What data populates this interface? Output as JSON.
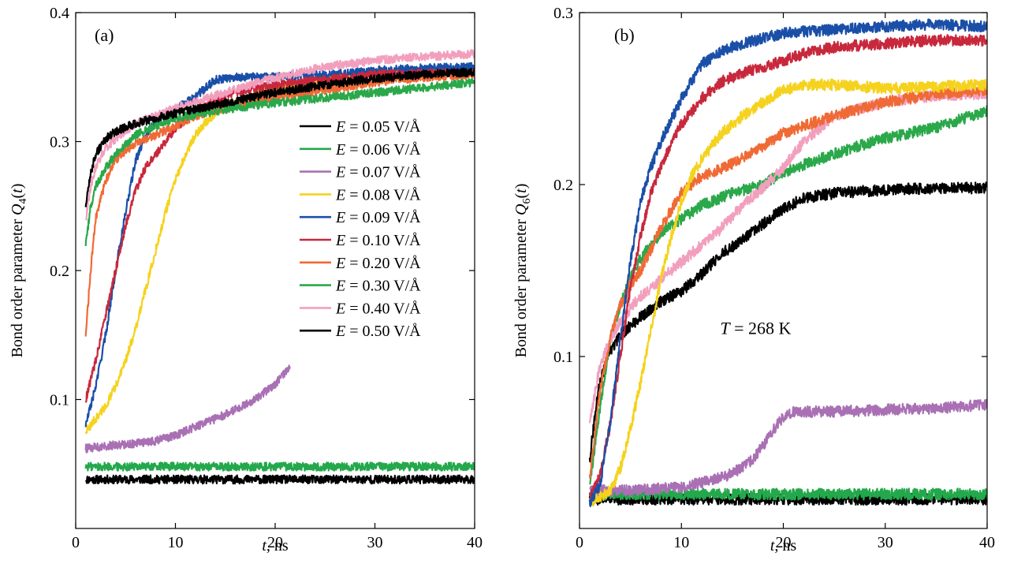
{
  "chart_data": [
    {
      "type": "line",
      "panel_label": "(a)",
      "xlabel_italic": "t",
      "xlabel_rest": ", ns",
      "ylabel_main": "Bond order parameter ",
      "ylabel_symbol": "Q",
      "ylabel_sub": "4",
      "ylabel_arg": "(t)",
      "xlim": [
        0,
        40
      ],
      "ylim": [
        0,
        0.4
      ],
      "xticks": [
        "0",
        "10",
        "20",
        "30",
        "40"
      ],
      "xtick_values": [
        0,
        10,
        20,
        30,
        40
      ],
      "yticks": [
        "0.1",
        "0.2",
        "0.3",
        "0.4"
      ],
      "ytick_values": [
        0.1,
        0.2,
        0.3,
        0.4
      ],
      "legend": {
        "placement": "right-middle"
      },
      "series": [
        {
          "name": "E = 0.05 V/Å",
          "label_var": "E",
          "label_rest": " = 0.05 V/Å",
          "color": "#000000",
          "x": [
            1,
            5,
            10,
            15,
            20,
            25,
            30,
            35,
            40
          ],
          "y": [
            0.038,
            0.038,
            0.038,
            0.038,
            0.038,
            0.038,
            0.038,
            0.038,
            0.038
          ]
        },
        {
          "name": "E = 0.06 V/Å",
          "label_var": "E",
          "label_rest": " = 0.06 V/Å",
          "color": "#23a84b",
          "x": [
            1,
            5,
            10,
            15,
            20,
            25,
            30,
            35,
            40
          ],
          "y": [
            0.048,
            0.048,
            0.048,
            0.048,
            0.048,
            0.048,
            0.048,
            0.048,
            0.048
          ]
        },
        {
          "name": "E = 0.07 V/Å",
          "label_var": "E",
          "label_rest": " = 0.07 V/Å",
          "color": "#a970b4",
          "x": [
            1,
            3,
            6,
            8,
            10,
            12,
            14,
            16,
            18,
            20,
            21.5
          ],
          "y": [
            0.062,
            0.064,
            0.066,
            0.068,
            0.072,
            0.079,
            0.085,
            0.092,
            0.1,
            0.112,
            0.125
          ]
        },
        {
          "name": "E = 0.08 V/Å",
          "label_var": "E",
          "label_rest": " = 0.08 V/Å",
          "color": "#f5d21e",
          "x": [
            1,
            2,
            3,
            4,
            5,
            6,
            7,
            8,
            9,
            10,
            11,
            12,
            13,
            14,
            16,
            20,
            25,
            30,
            35,
            40
          ],
          "y": [
            0.075,
            0.085,
            0.095,
            0.11,
            0.13,
            0.155,
            0.185,
            0.215,
            0.245,
            0.27,
            0.29,
            0.305,
            0.315,
            0.322,
            0.33,
            0.34,
            0.348,
            0.352,
            0.355,
            0.355
          ]
        },
        {
          "name": "E = 0.09 V/Å",
          "label_var": "E",
          "label_rest": " = 0.09 V/Å",
          "color": "#1a4fa8",
          "x": [
            1,
            2,
            3,
            4,
            5,
            6,
            7,
            8,
            10,
            12,
            14,
            16,
            20,
            25,
            30,
            35,
            40
          ],
          "y": [
            0.08,
            0.11,
            0.15,
            0.2,
            0.245,
            0.285,
            0.305,
            0.315,
            0.325,
            0.335,
            0.348,
            0.35,
            0.35,
            0.352,
            0.355,
            0.357,
            0.358
          ]
        },
        {
          "name": "E = 0.10 V/Å",
          "label_var": "E",
          "label_rest": " = 0.10 V/Å",
          "color": "#c8283c",
          "x": [
            1,
            2,
            3,
            4,
            5,
            6,
            7,
            8,
            9,
            10,
            12,
            14,
            16,
            20,
            25,
            30,
            35,
            40
          ],
          "y": [
            0.1,
            0.13,
            0.165,
            0.2,
            0.235,
            0.262,
            0.28,
            0.29,
            0.3,
            0.31,
            0.325,
            0.333,
            0.338,
            0.344,
            0.348,
            0.352,
            0.353,
            0.353
          ]
        },
        {
          "name": "E = 0.20 V/Å",
          "label_var": "E",
          "label_rest": " = 0.20 V/Å",
          "color": "#f06a35",
          "x": [
            1,
            1.5,
            2,
            3,
            4,
            5,
            6,
            8,
            10,
            12,
            15,
            20,
            25,
            30,
            35,
            40
          ],
          "y": [
            0.15,
            0.2,
            0.24,
            0.27,
            0.285,
            0.293,
            0.298,
            0.305,
            0.312,
            0.32,
            0.326,
            0.334,
            0.34,
            0.346,
            0.35,
            0.352
          ]
        },
        {
          "name": "E = 0.30 V/Å",
          "label_var": "E",
          "label_rest": " = 0.30 V/Å",
          "color": "#2aa84a",
          "x": [
            1,
            1.5,
            2,
            3,
            4,
            5,
            6,
            8,
            10,
            15,
            20,
            25,
            30,
            35,
            40
          ],
          "y": [
            0.22,
            0.25,
            0.265,
            0.28,
            0.29,
            0.298,
            0.305,
            0.312,
            0.318,
            0.325,
            0.33,
            0.334,
            0.338,
            0.342,
            0.346
          ]
        },
        {
          "name": "E = 0.40 V/Å",
          "label_var": "E",
          "label_rest": " = 0.40 V/Å",
          "color": "#f29fbe",
          "x": [
            1,
            1.5,
            2,
            3,
            4,
            5,
            6,
            8,
            10,
            15,
            20,
            25,
            30,
            35,
            40
          ],
          "y": [
            0.24,
            0.265,
            0.28,
            0.295,
            0.302,
            0.308,
            0.314,
            0.32,
            0.326,
            0.338,
            0.35,
            0.358,
            0.363,
            0.366,
            0.368
          ]
        },
        {
          "name": "E = 0.50 V/Å",
          "label_var": "E",
          "label_rest": " = 0.50 V/Å",
          "color": "#000000",
          "x": [
            1,
            1.5,
            2,
            3,
            4,
            5,
            6,
            8,
            10,
            15,
            20,
            25,
            30,
            35,
            40
          ],
          "y": [
            0.25,
            0.275,
            0.29,
            0.302,
            0.308,
            0.311,
            0.314,
            0.318,
            0.322,
            0.33,
            0.338,
            0.344,
            0.349,
            0.352,
            0.354
          ]
        }
      ]
    },
    {
      "type": "line",
      "panel_label": "(b)",
      "xlabel_italic": "t",
      "xlabel_rest": ", ns",
      "ylabel_main": "Bond order parameter ",
      "ylabel_symbol": "Q",
      "ylabel_sub": "6",
      "ylabel_arg": "(t)",
      "xlim": [
        0,
        40
      ],
      "ylim": [
        0,
        0.3
      ],
      "xticks": [
        "0",
        "10",
        "20",
        "30",
        "40"
      ],
      "xtick_values": [
        0,
        10,
        20,
        30,
        40
      ],
      "yticks": [
        "0.1",
        "0.2",
        "0.3"
      ],
      "ytick_values": [
        0.1,
        0.2,
        0.3
      ],
      "annotation": {
        "var": "T",
        "rest": " = 268 K",
        "x": 13.8,
        "y": 0.113
      },
      "series": [
        {
          "color": "#000000",
          "x": [
            1,
            5,
            10,
            15,
            20,
            25,
            30,
            35,
            40
          ],
          "y": [
            0.017,
            0.017,
            0.017,
            0.017,
            0.017,
            0.017,
            0.017,
            0.017,
            0.017
          ]
        },
        {
          "color": "#23a84b",
          "x": [
            1,
            5,
            10,
            15,
            20,
            25,
            30,
            35,
            40
          ],
          "y": [
            0.02,
            0.02,
            0.02,
            0.02,
            0.02,
            0.02,
            0.02,
            0.02,
            0.02
          ]
        },
        {
          "color": "#a970b4",
          "x": [
            1,
            5,
            10,
            13,
            15,
            17,
            18,
            19,
            20,
            21,
            25,
            30,
            35,
            40
          ],
          "y": [
            0.022,
            0.022,
            0.024,
            0.028,
            0.032,
            0.04,
            0.048,
            0.057,
            0.065,
            0.068,
            0.068,
            0.069,
            0.07,
            0.072
          ]
        },
        {
          "color": "#000000",
          "x": [
            1,
            1.5,
            2,
            3,
            4,
            5,
            6,
            8,
            10,
            12,
            14,
            16,
            18,
            20,
            22,
            25,
            30,
            35,
            40
          ],
          "y": [
            0.04,
            0.065,
            0.085,
            0.103,
            0.112,
            0.118,
            0.123,
            0.132,
            0.138,
            0.148,
            0.16,
            0.168,
            0.177,
            0.186,
            0.192,
            0.195,
            0.197,
            0.198,
            0.198
          ]
        },
        {
          "color": "#2aa84a",
          "x": [
            1,
            2,
            3,
            4,
            5,
            6,
            7,
            8,
            10,
            12,
            15,
            18,
            20,
            25,
            30,
            35,
            40
          ],
          "y": [
            0.025,
            0.07,
            0.11,
            0.13,
            0.145,
            0.157,
            0.165,
            0.172,
            0.18,
            0.188,
            0.195,
            0.2,
            0.207,
            0.218,
            0.227,
            0.233,
            0.243
          ]
        },
        {
          "color": "#f29fbe",
          "x": [
            1,
            2,
            3,
            4,
            5,
            6,
            8,
            10,
            12,
            14,
            16,
            18,
            20,
            22,
            25,
            30,
            35,
            40
          ],
          "y": [
            0.06,
            0.095,
            0.11,
            0.12,
            0.128,
            0.135,
            0.145,
            0.155,
            0.165,
            0.175,
            0.188,
            0.198,
            0.21,
            0.225,
            0.24,
            0.248,
            0.252,
            0.253
          ]
        },
        {
          "color": "#f06a35",
          "x": [
            1,
            2,
            3,
            4,
            5,
            6,
            7,
            8,
            10,
            12,
            15,
            18,
            20,
            25,
            30,
            35,
            40
          ],
          "y": [
            0.03,
            0.08,
            0.11,
            0.13,
            0.142,
            0.15,
            0.162,
            0.175,
            0.195,
            0.205,
            0.212,
            0.222,
            0.23,
            0.24,
            0.248,
            0.253,
            0.255
          ]
        },
        {
          "color": "#f5d21e",
          "x": [
            1,
            3,
            4,
            5,
            6,
            7,
            8,
            9,
            10,
            11,
            12,
            14,
            16,
            18,
            20,
            22,
            25,
            30,
            35,
            40
          ],
          "y": [
            0.015,
            0.022,
            0.035,
            0.058,
            0.085,
            0.115,
            0.145,
            0.17,
            0.19,
            0.205,
            0.215,
            0.23,
            0.24,
            0.248,
            0.255,
            0.258,
            0.258,
            0.256,
            0.257,
            0.258
          ]
        },
        {
          "color": "#c8283c",
          "x": [
            1,
            2,
            3,
            4,
            5,
            6,
            7,
            8,
            9,
            10,
            12,
            14,
            16,
            18,
            20,
            22,
            25,
            30,
            35,
            40
          ],
          "y": [
            0.018,
            0.03,
            0.06,
            0.1,
            0.14,
            0.17,
            0.195,
            0.21,
            0.225,
            0.235,
            0.25,
            0.26,
            0.265,
            0.268,
            0.272,
            0.276,
            0.28,
            0.282,
            0.284,
            0.284
          ]
        },
        {
          "color": "#1a4fa8",
          "x": [
            1,
            2,
            3,
            4,
            5,
            6,
            7,
            8,
            10,
            12,
            14,
            16,
            18,
            20,
            22,
            25,
            30,
            35,
            40
          ],
          "y": [
            0.015,
            0.025,
            0.06,
            0.11,
            0.155,
            0.19,
            0.21,
            0.225,
            0.25,
            0.27,
            0.278,
            0.282,
            0.285,
            0.288,
            0.289,
            0.29,
            0.292,
            0.293,
            0.292
          ]
        }
      ]
    }
  ]
}
